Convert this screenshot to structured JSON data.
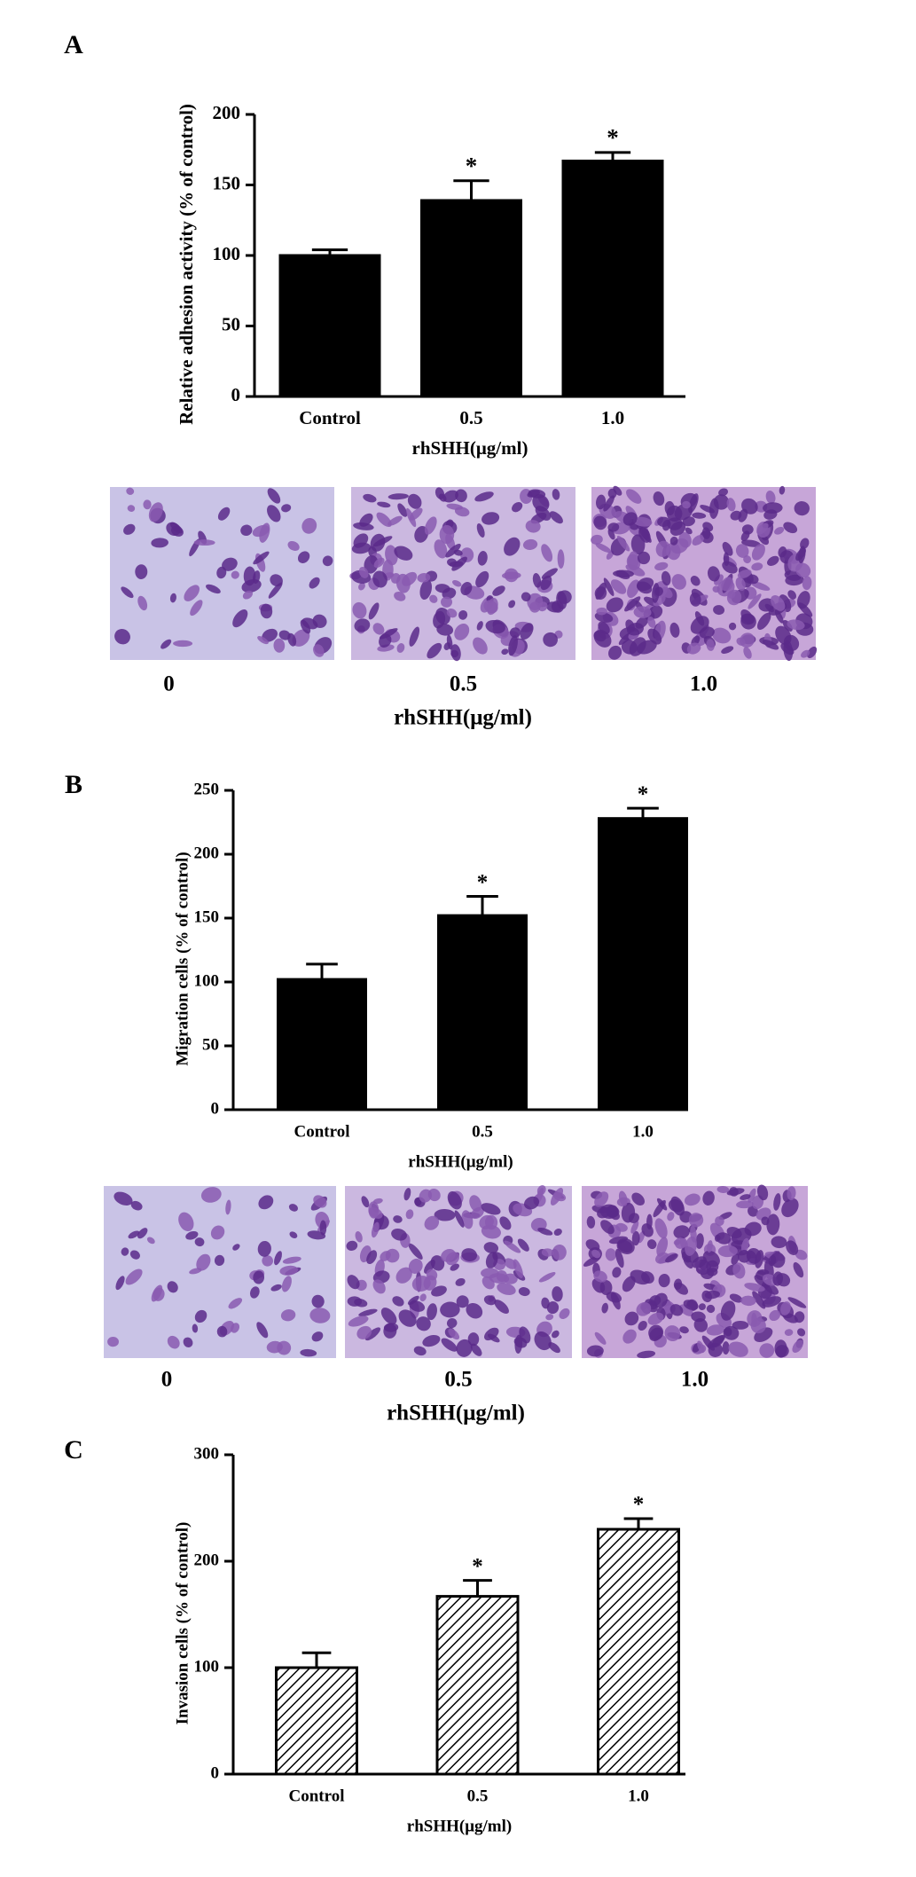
{
  "chart_data": [
    {
      "type": "bar",
      "panel_label": "A",
      "y_label": "Relative adhesion activity (% of control)",
      "x_label": "rhSHH(μg/ml)",
      "categories": [
        "Control",
        "0.5",
        "1.0"
      ],
      "values": [
        100,
        139,
        167
      ],
      "errors": [
        4,
        14,
        6
      ],
      "color": "#000000",
      "annotations": [
        {
          "category": "0.5",
          "text": "*"
        },
        {
          "category": "1.0",
          "text": "*"
        }
      ],
      "ylim": [
        0,
        200
      ],
      "yticks": [
        0,
        50,
        100,
        150,
        200
      ]
    },
    {
      "type": "bar",
      "panel_label": "B",
      "y_label": "Migration cells (% of control)",
      "x_label": "rhSHH(μg/ml)",
      "categories": [
        "Control",
        "0.5",
        "1.0"
      ],
      "values": [
        102,
        152,
        228
      ],
      "errors": [
        12,
        15,
        8
      ],
      "color": "#000000",
      "annotations": [
        {
          "category": "0.5",
          "text": "*"
        },
        {
          "category": "1.0",
          "text": "*"
        }
      ],
      "ylim": [
        0,
        250
      ],
      "yticks": [
        0,
        50,
        100,
        150,
        200,
        250
      ]
    },
    {
      "type": "bar",
      "panel_label": "C",
      "y_label": "Invasion cells (% of control)",
      "x_label": "rhSHH(μg/ml)",
      "categories": [
        "Control",
        "0.5",
        "1.0"
      ],
      "values": [
        100,
        167,
        230
      ],
      "errors": [
        14,
        15,
        10
      ],
      "color": "#000000",
      "pattern": "hatch",
      "annotations": [
        {
          "category": "0.5",
          "text": "*"
        },
        {
          "category": "1.0",
          "text": "*"
        }
      ],
      "ylim": [
        0,
        300
      ],
      "yticks": [
        0,
        100,
        200,
        300
      ]
    }
  ],
  "image_panels": [
    {
      "labels": [
        "0",
        "0.5",
        "1.0"
      ],
      "x_label": "rhSHH(μg/ml)"
    },
    {
      "labels": [
        "0",
        "0.5",
        "1.0"
      ],
      "x_label": "rhSHH(μg/ml)"
    }
  ]
}
